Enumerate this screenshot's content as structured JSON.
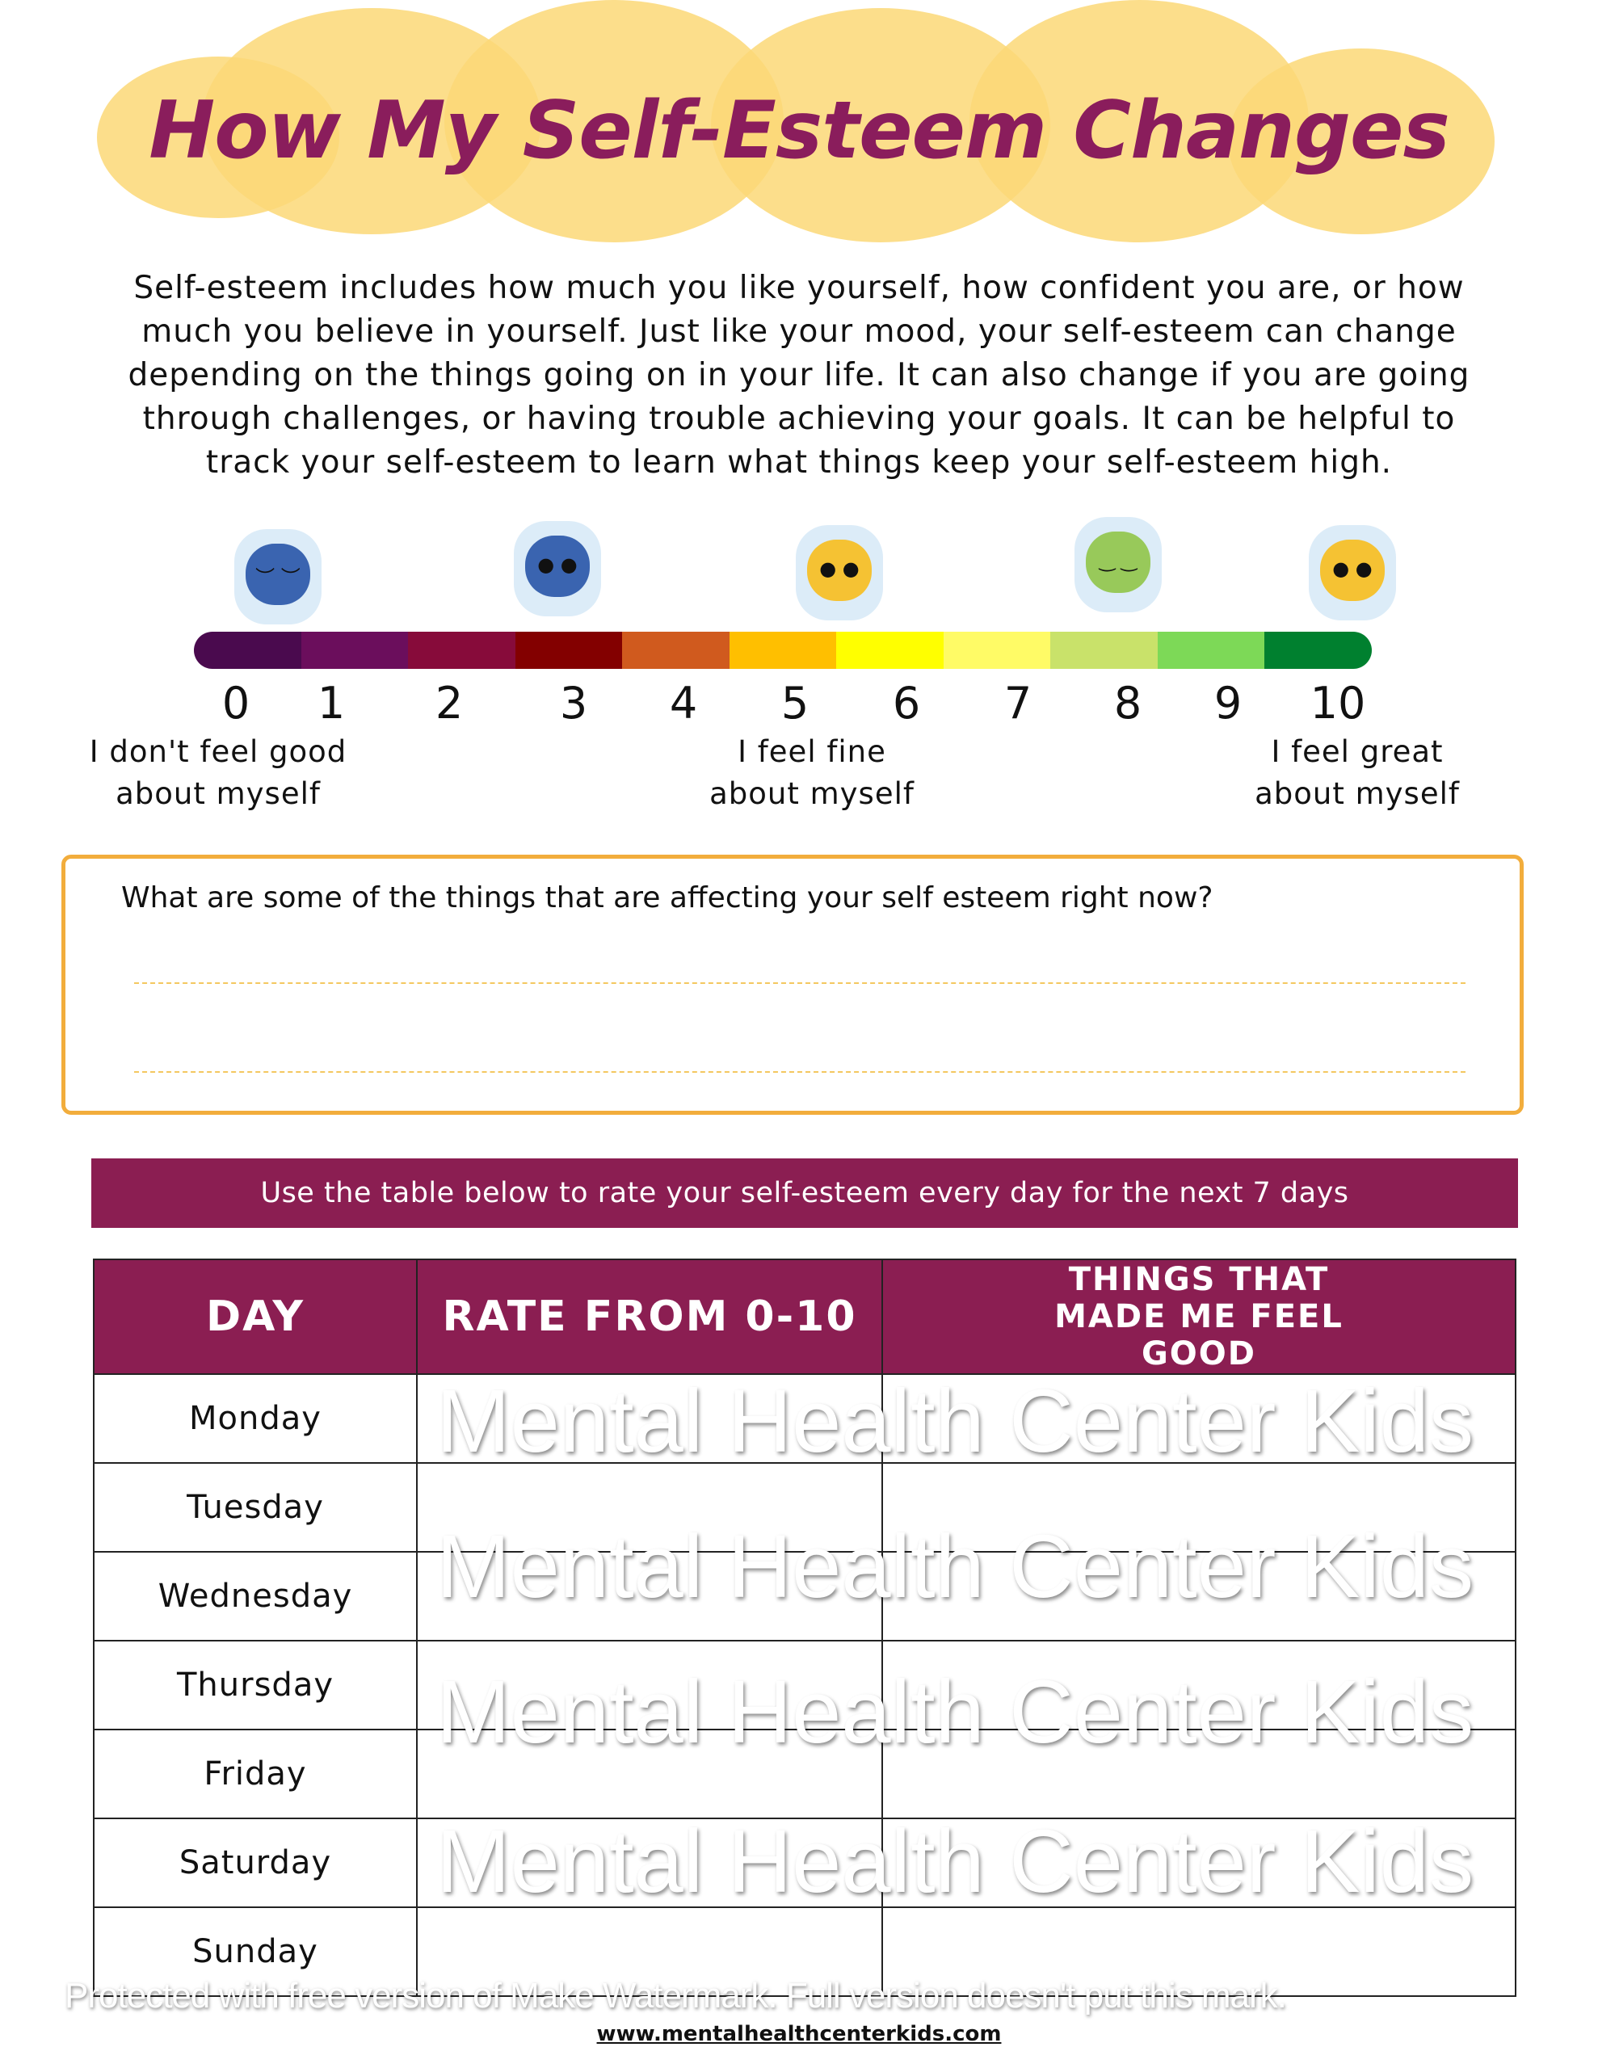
{
  "title": "How My Self-Esteem Changes",
  "intro": "Self-esteem includes how much you like yourself, how confident you are, or how much you believe in yourself. Just like your mood, your self-esteem can change depending on the things going on in your life. It can also change if you are going through challenges, or having trouble achieving your goals. It can be helpful to track your self-esteem to learn what things keep your self-esteem high.",
  "scale": {
    "faces": [
      {
        "icon": "crying-blue-brain-icon",
        "color": "#3a64b0",
        "eyes": "︶ ︶"
      },
      {
        "icon": "sad-blue-brain-icon",
        "color": "#3a64b0",
        "eyes": "● ●"
      },
      {
        "icon": "neutral-yellow-brain-icon",
        "color": "#f5c233",
        "eyes": "● ●"
      },
      {
        "icon": "calm-green-brain-icon",
        "color": "#98c95a",
        "eyes": "‿ ‿"
      },
      {
        "icon": "happy-yellow-brain-icon",
        "color": "#f5c233",
        "eyes": "● ●"
      }
    ],
    "colors": [
      "#4a0a4e",
      "#6b0e5c",
      "#870b3a",
      "#830000",
      "#d05a1e",
      "#ffbf00",
      "#ffff00",
      "#fffb66",
      "#c9e26a",
      "#7dd957",
      "#00802f"
    ],
    "numbers": [
      "0",
      "1",
      "2",
      "3",
      "4",
      "5",
      "6",
      "7",
      "8",
      "9",
      "10"
    ],
    "label_low": [
      "I don't feel good",
      "about myself"
    ],
    "label_mid": [
      "I feel fine",
      "about myself"
    ],
    "label_high": [
      "I feel great",
      "about myself"
    ]
  },
  "question": "What are some of the things that are affecting your self esteem right now?",
  "banner": "Use the table below to rate your self-esteem every day for the next 7 days",
  "table": {
    "headers": [
      "DAY",
      "RATE FROM 0-10",
      "THINGS THAT MADE ME FEEL GOOD"
    ],
    "days": [
      "Monday",
      "Tuesday",
      "Wednesday",
      "Thursday",
      "Friday",
      "Saturday",
      "Sunday"
    ]
  },
  "watermark": "Mental Health Center Kids",
  "watermark_notice": "Protected with free version of Make Watermark. Full version doesn't put this mark.",
  "footer_url": "www.mentalhealthcenterkids.com",
  "colors": {
    "accent": "#8b1e52",
    "box_border": "#f2ad3c"
  }
}
